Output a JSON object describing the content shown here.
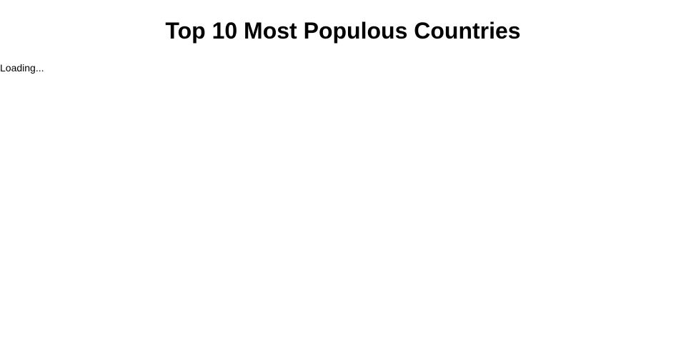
{
  "page": {
    "title": "Top 10 Most Populous Countries",
    "status_text": "Loading..."
  }
}
